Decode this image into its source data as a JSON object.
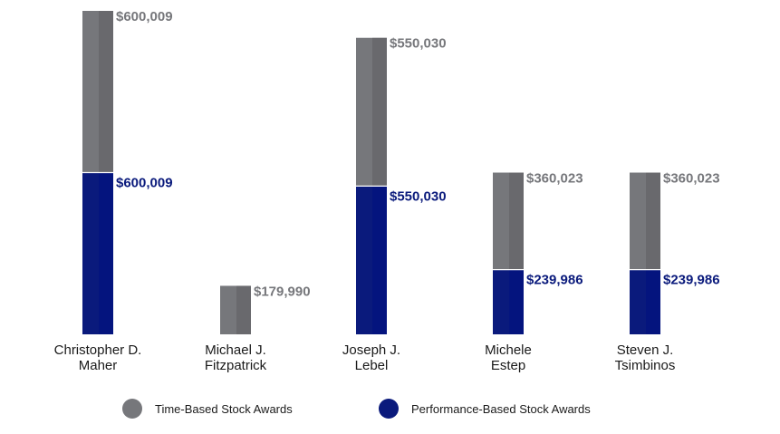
{
  "chart_data": {
    "type": "bar",
    "stacked": true,
    "categories": [
      [
        "Christopher D.",
        "Maher"
      ],
      [
        "Michael J.",
        "Fitzpatrick"
      ],
      [
        "Joseph J.",
        "Lebel"
      ],
      [
        "Michele",
        "Estep"
      ],
      [
        "Steven J.",
        "Tsimbinos"
      ]
    ],
    "series": [
      {
        "name": "Performance-Based Stock Awards",
        "color": "#0a1a7c",
        "values": [
          600009,
          0,
          550030,
          239986,
          239986
        ],
        "labels": [
          "$600,009",
          "",
          "$550,030",
          "$239,986",
          "$239,986"
        ]
      },
      {
        "name": "Time-Based Stock Awards",
        "color": "#76777b",
        "values": [
          600009,
          179990,
          550030,
          360023,
          360023
        ],
        "labels": [
          "$600,009",
          "$179,990",
          "$550,030",
          "$360,023",
          "$360,023"
        ]
      }
    ],
    "ylim": [
      0,
      1200018
    ],
    "grid": false,
    "axes_visible": false,
    "legend": {
      "position": "bottom",
      "items": [
        {
          "label": "Time-Based Stock Awards",
          "color": "#76777b"
        },
        {
          "label": "Performance-Based Stock Awards",
          "color": "#0a1a7c"
        }
      ]
    }
  }
}
